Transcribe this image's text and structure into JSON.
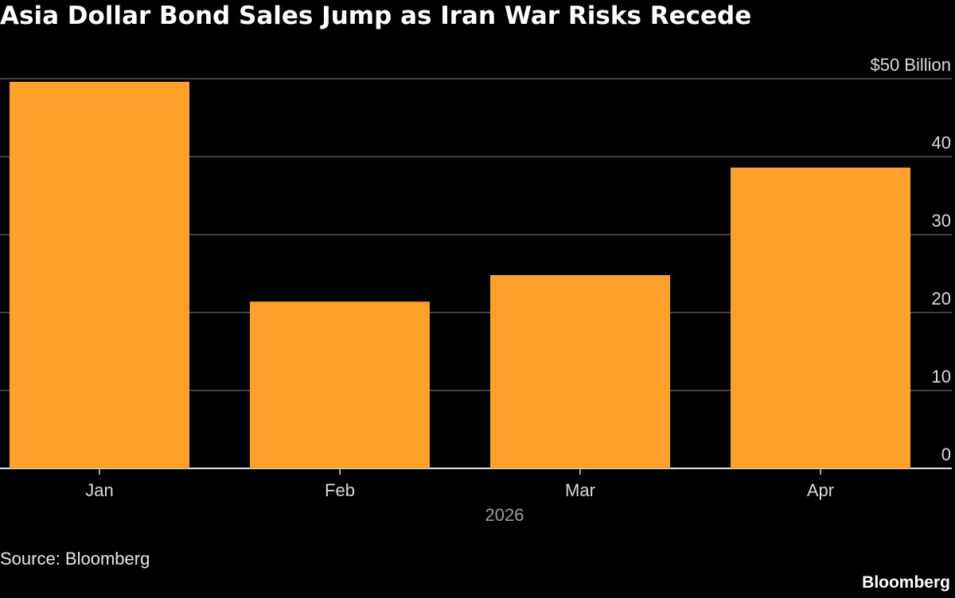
{
  "title": "Asia Dollar Bond Sales Jump as Iran War Risks Recede",
  "source": "Source: Bloomberg",
  "brand": "Bloomberg",
  "chart_data": {
    "type": "bar",
    "title": "Asia Dollar Bond Sales Jump as Iran War Risks Recede",
    "categories": [
      "Jan",
      "Feb",
      "Mar",
      "Apr"
    ],
    "values": [
      49.6,
      21.4,
      24.8,
      38.6
    ],
    "xlabel": "2026",
    "ylabel": "",
    "ylim": [
      0,
      50
    ],
    "yticks": [
      {
        "value": 0,
        "label": "0"
      },
      {
        "value": 10,
        "label": "10"
      },
      {
        "value": 20,
        "label": "20"
      },
      {
        "value": 30,
        "label": "30"
      },
      {
        "value": 40,
        "label": "40"
      },
      {
        "value": 50,
        "label": "$50 Billion"
      }
    ],
    "bar_color": "#FFA028",
    "grid": true,
    "axis_side": "right",
    "legend": "none"
  }
}
